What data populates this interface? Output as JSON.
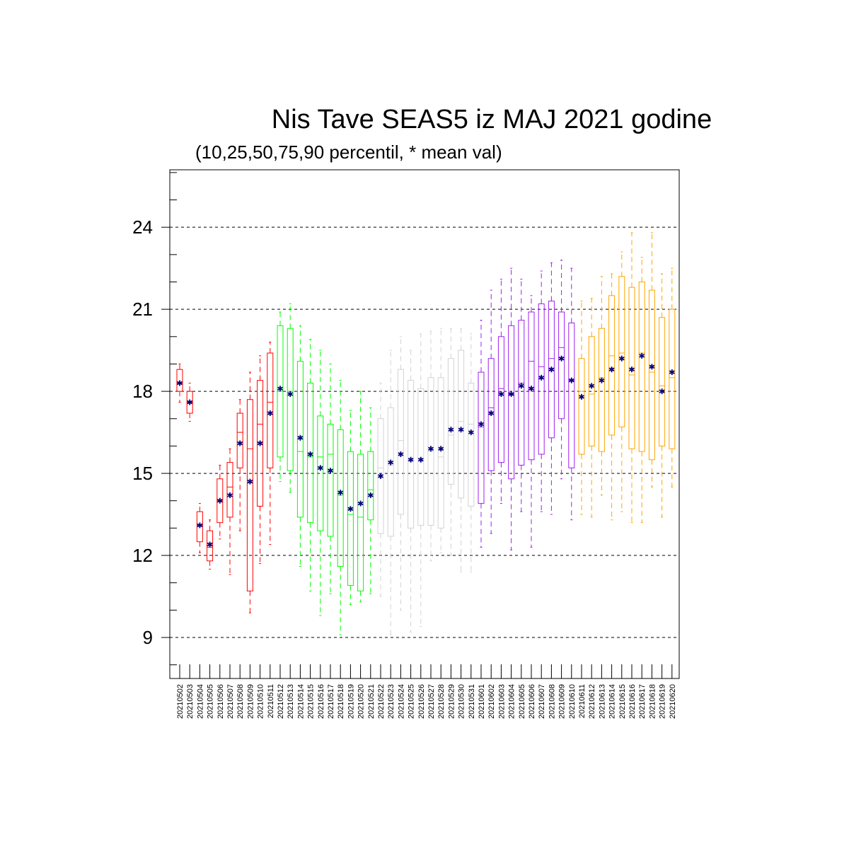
{
  "chart_data": {
    "type": "box",
    "title": "Nis Tave SEAS5 iz MAJ 2021 godine",
    "subtitle": "(10,25,50,75,90 percentil, * mean val)",
    "ylim": [
      7.5,
      26.1
    ],
    "yticks": [
      "9",
      "12",
      "15",
      "18",
      "21",
      "24"
    ],
    "grid": "horizontal dashed at major ticks",
    "mean_marker": "*",
    "categories": [
      "20210502",
      "20210503",
      "20210504",
      "20210505",
      "20210506",
      "20210507",
      "20210508",
      "20210509",
      "20210510",
      "20210511",
      "20210512",
      "20210513",
      "20210514",
      "20210515",
      "20210516",
      "20210517",
      "20210518",
      "20210519",
      "20210520",
      "20210521",
      "20210522",
      "20210523",
      "20210524",
      "20210525",
      "20210526",
      "20210527",
      "20210528",
      "20210529",
      "20210530",
      "20210531",
      "20210601",
      "20210602",
      "20210603",
      "20210604",
      "20210605",
      "20210606",
      "20210607",
      "20210608",
      "20210609",
      "20210610",
      "20210611",
      "20210612",
      "20210613",
      "20210614",
      "20210615",
      "20210616",
      "20210617",
      "20210618",
      "20210619",
      "20210620"
    ],
    "colors": [
      "#ff0000",
      "#ff0000",
      "#ff0000",
      "#ff0000",
      "#ff0000",
      "#ff0000",
      "#ff0000",
      "#ff0000",
      "#ff0000",
      "#ff0000",
      "#00ff00",
      "#00ff00",
      "#00ff00",
      "#00ff00",
      "#00ff00",
      "#00ff00",
      "#00ff00",
      "#00ff00",
      "#00ff00",
      "#00ff00",
      "#d3d3d3",
      "#d3d3d3",
      "#d3d3d3",
      "#d3d3d3",
      "#d3d3d3",
      "#d3d3d3",
      "#d3d3d3",
      "#d3d3d3",
      "#d3d3d3",
      "#d3d3d3",
      "#a020f0",
      "#a020f0",
      "#a020f0",
      "#a020f0",
      "#a020f0",
      "#a020f0",
      "#a020f0",
      "#a020f0",
      "#a020f0",
      "#a020f0",
      "#ffa500",
      "#ffa500",
      "#ffa500",
      "#ffa500",
      "#ffa500",
      "#ffa500",
      "#ffa500",
      "#ffa500",
      "#ffa500",
      "#ffa500"
    ],
    "p10": [
      17.6,
      16.9,
      12.1,
      11.5,
      12.6,
      11.3,
      12.9,
      9.9,
      11.7,
      12.4,
      14.7,
      14.3,
      11.6,
      10.7,
      9.8,
      10.6,
      9.1,
      10.2,
      10.3,
      10.6,
      10.5,
      9.1,
      10.0,
      9.2,
      9.4,
      11.8,
      12.1,
      12.0,
      11.4,
      11.4,
      12.3,
      12.8,
      13.9,
      12.2,
      13.6,
      12.3,
      13.6,
      13.5,
      14.8,
      13.3,
      13.5,
      13.4,
      14.2,
      13.3,
      13.6,
      13.2,
      13.2,
      14.5,
      13.4,
      14.5
    ],
    "p25": [
      18.0,
      17.2,
      12.5,
      11.8,
      13.2,
      13.4,
      15.2,
      10.7,
      13.8,
      15.2,
      15.6,
      15.1,
      13.4,
      13.2,
      12.9,
      12.7,
      11.6,
      10.9,
      10.7,
      13.3,
      12.8,
      12.7,
      13.5,
      13.0,
      13.1,
      13.1,
      13.0,
      14.6,
      14.1,
      13.8,
      13.9,
      15.1,
      15.4,
      14.8,
      15.3,
      15.5,
      15.7,
      16.3,
      17.0,
      15.2,
      15.7,
      16.0,
      15.8,
      16.4,
      16.7,
      15.9,
      15.8,
      15.5,
      16.0,
      15.9
    ],
    "p50": [
      18.3,
      17.6,
      13.1,
      12.3,
      14.0,
      14.5,
      16.5,
      15.9,
      16.8,
      17.6,
      18.0,
      18.0,
      15.8,
      15.6,
      15.6,
      15.7,
      14.2,
      13.5,
      13.4,
      14.4,
      15.2,
      15.3,
      16.2,
      15.5,
      15.5,
      15.8,
      15.6,
      16.4,
      16.9,
      16.8,
      16.7,
      17.4,
      18.1,
      17.9,
      18.3,
      19.1,
      18.9,
      19.2,
      19.6,
      18.4,
      18.0,
      17.9,
      18.5,
      19.3,
      19.4,
      18.6,
      19.4,
      18.7,
      18.2,
      18.5
    ],
    "p75": [
      18.8,
      18.0,
      13.6,
      12.9,
      14.8,
      15.4,
      17.2,
      17.7,
      18.4,
      19.4,
      20.4,
      20.3,
      19.1,
      18.3,
      17.1,
      16.8,
      16.6,
      15.8,
      15.7,
      15.8,
      17.0,
      17.4,
      18.8,
      18.4,
      18.1,
      18.5,
      18.5,
      19.2,
      19.5,
      18.3,
      18.7,
      19.2,
      20.0,
      20.4,
      20.6,
      20.9,
      21.2,
      21.3,
      20.9,
      20.5,
      19.2,
      20.0,
      20.3,
      21.5,
      22.2,
      21.8,
      22.0,
      21.7,
      20.7,
      21.0
    ],
    "p90": [
      19.0,
      18.3,
      13.9,
      13.3,
      15.3,
      15.9,
      17.7,
      18.7,
      19.3,
      19.8,
      20.9,
      21.2,
      20.4,
      19.9,
      19.5,
      19.0,
      18.4,
      17.3,
      18.0,
      17.4,
      18.3,
      19.5,
      20.0,
      19.5,
      20.1,
      20.2,
      20.3,
      20.3,
      20.3,
      20.1,
      20.6,
      21.7,
      22.1,
      22.5,
      22.1,
      21.5,
      22.4,
      22.7,
      22.8,
      22.5,
      21.3,
      21.4,
      22.2,
      22.3,
      23.1,
      23.8,
      22.9,
      23.8,
      22.3,
      22.5
    ],
    "mean": [
      18.3,
      17.6,
      13.1,
      12.4,
      14.0,
      14.2,
      16.1,
      14.7,
      16.1,
      17.2,
      18.1,
      17.9,
      16.3,
      15.7,
      15.2,
      15.1,
      14.3,
      13.7,
      13.9,
      14.2,
      14.9,
      15.4,
      15.7,
      15.5,
      15.5,
      15.9,
      15.9,
      16.6,
      16.6,
      16.5,
      16.8,
      17.2,
      17.9,
      17.9,
      18.2,
      18.1,
      18.5,
      18.8,
      19.2,
      18.4,
      17.8,
      18.2,
      18.4,
      18.8,
      19.2,
      18.8,
      19.3,
      18.9,
      18.0,
      18.7
    ]
  }
}
